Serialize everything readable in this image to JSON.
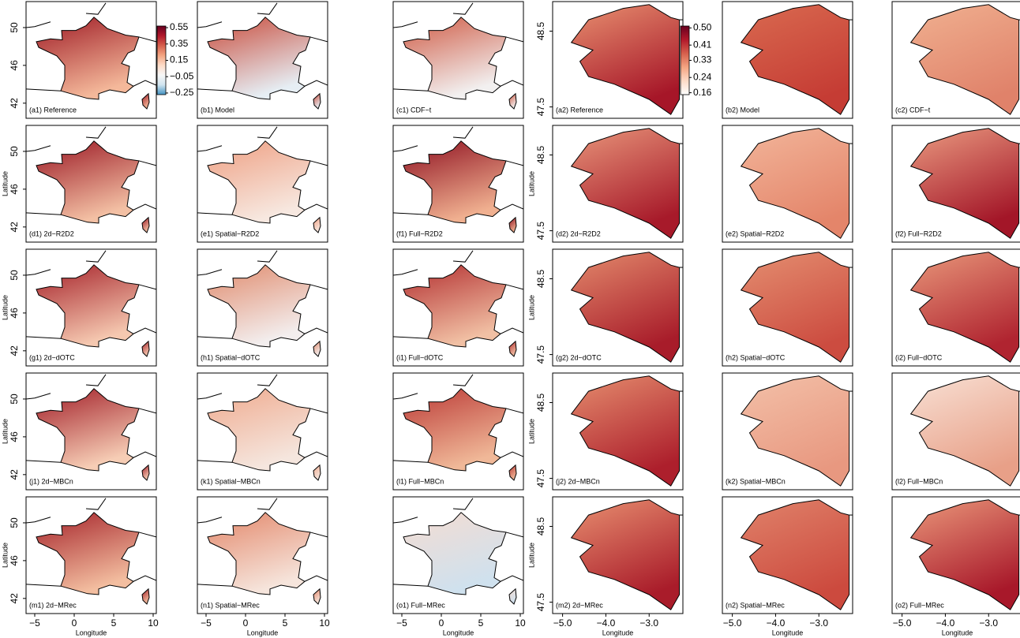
{
  "figure": {
    "left": {
      "xlabel": "Longitude",
      "ylabel": "Latitude",
      "xlim": [
        -6.1,
        10.4
      ],
      "ylim": [
        40.4,
        52.75
      ],
      "xticks": [
        {
          "value": -5,
          "label": "−5"
        },
        0,
        5,
        10
      ],
      "yticks": [
        42,
        46,
        50
      ],
      "colorbar": {
        "lim": [
          -0.27,
          0.57
        ],
        "ticks": [
          {
            "value": 0.55,
            "label": "0.55"
          },
          {
            "value": 0.35,
            "label": "0.35"
          },
          {
            "value": 0.15,
            "label": "0.15"
          },
          {
            "value": -0.05,
            "label": "−0.05"
          },
          {
            "value": -0.25,
            "label": "−0.25"
          }
        ],
        "colors": [
          "#67001f",
          "#b2182b",
          "#d6604d",
          "#f4a582",
          "#fddbc7",
          "#f7f7f7",
          "#d1e5f0",
          "#4393c3"
        ]
      },
      "panels": [
        {
          "label": "(a1) Reference",
          "colors": [
            "#9e1a24",
            "#f4b89a"
          ]
        },
        {
          "label": "(b1) Model",
          "colors": [
            "#c84a3a",
            "#e6eef4"
          ]
        },
        {
          "label": "(c1) CDF−t",
          "colors": [
            "#cf5a44",
            "#f2f0f0"
          ]
        },
        {
          "label": "(d1) 2d−R2D2",
          "colors": [
            "#9a1622",
            "#f3c0a4"
          ]
        },
        {
          "label": "(e1) Spatial−R2D2",
          "colors": [
            "#ee9f82",
            "#f7e8e0"
          ]
        },
        {
          "label": "(f1) Full−R2D2",
          "colors": [
            "#8e1020",
            "#f0b090"
          ]
        },
        {
          "label": "(g1) 2d−dOTC",
          "colors": [
            "#a52028",
            "#f5c8b0"
          ]
        },
        {
          "label": "(h1) Spatial−dOTC",
          "colors": [
            "#e08a6c",
            "#f3eeee"
          ]
        },
        {
          "label": "(i1) Full−dOTC",
          "colors": [
            "#b32f30",
            "#f1c0a4"
          ]
        },
        {
          "label": "(j1) 2d−MBCn",
          "colors": [
            "#a11c26",
            "#f6cdb5"
          ]
        },
        {
          "label": "(k1) Spatial−MBCn",
          "colors": [
            "#efaa8e",
            "#f5e6de"
          ]
        },
        {
          "label": "(l1) Full−MBCn",
          "colors": [
            "#bb3a36",
            "#f0b898"
          ]
        },
        {
          "label": "(m1) 2d−MRec",
          "colors": [
            "#a52229",
            "#f3bea0"
          ]
        },
        {
          "label": "(n1) Spatial−MRec",
          "colors": [
            "#e3876a",
            "#f6e5dc"
          ]
        },
        {
          "label": "(o1) Full−MRec",
          "colors": [
            "#f4dcd2",
            "#cfe1ee"
          ]
        }
      ]
    },
    "right": {
      "xlabel": "Longitude",
      "ylabel": "Latitude",
      "xlim": [
        -5.23,
        -2.22
      ],
      "ylim": [
        47.35,
        48.89
      ],
      "xticks": [
        {
          "value": -5.0,
          "label": "−5.0"
        },
        {
          "value": -4.0,
          "label": "−4.0"
        },
        {
          "value": -3.0,
          "label": "−3.0"
        }
      ],
      "yticks": [
        {
          "value": 47.5,
          "label": "47.5"
        },
        {
          "value": 48.5,
          "label": "48.5"
        }
      ],
      "colorbar": {
        "lim": [
          0.15,
          0.51
        ],
        "ticks": [
          {
            "value": 0.5,
            "label": "0.50"
          },
          {
            "value": 0.41,
            "label": "0.41"
          },
          {
            "value": 0.33,
            "label": "0.33"
          },
          {
            "value": 0.24,
            "label": "0.24"
          },
          {
            "value": 0.16,
            "label": "0.16"
          }
        ],
        "colors": [
          "#67001f",
          "#b2182b",
          "#d6604d",
          "#f4a582",
          "#fddbc7",
          "#ffffff"
        ]
      },
      "panels": [
        {
          "label": "(a2) Reference",
          "colors": [
            "#e89070",
            "#a61628"
          ]
        },
        {
          "label": "(b2) Model",
          "colors": [
            "#d96a50",
            "#c53c34"
          ]
        },
        {
          "label": "(c2) CDF−t",
          "colors": [
            "#f0b090",
            "#e0826a"
          ]
        },
        {
          "label": "(d2) 2d−R2D2",
          "colors": [
            "#e8957a",
            "#a71a2a"
          ]
        },
        {
          "label": "(e2) Spatial−R2D2",
          "colors": [
            "#f2b59a",
            "#e4856a"
          ]
        },
        {
          "label": "(f2) Full−R2D2",
          "colors": [
            "#ea9a80",
            "#a31628"
          ]
        },
        {
          "label": "(g2) 2d−dOTC",
          "colors": [
            "#e38a6c",
            "#a81c2a"
          ]
        },
        {
          "label": "(h2) Spatial−dOTC",
          "colors": [
            "#e48e70",
            "#cc4c40"
          ]
        },
        {
          "label": "(i2) Full−dOTC",
          "colors": [
            "#e8977a",
            "#b02430"
          ]
        },
        {
          "label": "(j2) 2d−MBCn",
          "colors": [
            "#e58d6e",
            "#ad1f2c"
          ]
        },
        {
          "label": "(k2) Spatial−MBCn",
          "colors": [
            "#f3c0a8",
            "#e89880"
          ]
        },
        {
          "label": "(l2) Full−MBCn",
          "colors": [
            "#f8e0d4",
            "#e8a088"
          ]
        },
        {
          "label": "(m2) 2d−MRec",
          "colors": [
            "#e88f70",
            "#a91c2a"
          ]
        },
        {
          "label": "(n2) Spatial−MRec",
          "colors": [
            "#e0826a",
            "#cc4a3e"
          ]
        },
        {
          "label": "(o2) Full−MRec",
          "colors": [
            "#ea977a",
            "#a8182a"
          ]
        }
      ]
    }
  }
}
